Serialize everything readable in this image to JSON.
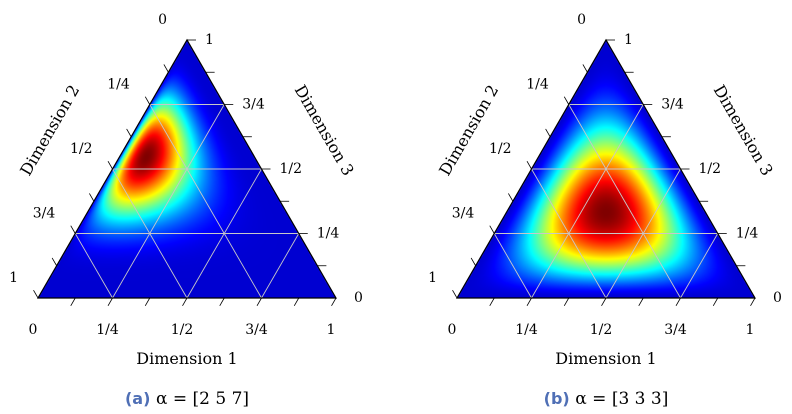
{
  "chart_data": [
    {
      "type": "heatmap",
      "subtype": "ternary-density",
      "distribution": "Dirichlet",
      "alpha": [
        2,
        5,
        7
      ],
      "caption_tag": "(a)",
      "caption_text": "α = [2 5 7]",
      "axes": [
        {
          "label": "Dimension 1",
          "ticks": [
            "0",
            "1/4",
            "1/2",
            "3/4",
            "1"
          ]
        },
        {
          "label": "Dimension 2",
          "ticks": [
            "0",
            "1/4",
            "1/2",
            "3/4",
            "1"
          ]
        },
        {
          "label": "Dimension 3",
          "ticks": [
            "0",
            "1/4",
            "1/2",
            "3/4",
            "1"
          ]
        }
      ],
      "colormap": "jet",
      "grid": true
    },
    {
      "type": "heatmap",
      "subtype": "ternary-density",
      "distribution": "Dirichlet",
      "alpha": [
        3,
        3,
        3
      ],
      "caption_tag": "(b)",
      "caption_text": "α = [3 3 3]",
      "axes": [
        {
          "label": "Dimension 1",
          "ticks": [
            "0",
            "1/4",
            "1/2",
            "3/4",
            "1"
          ]
        },
        {
          "label": "Dimension 2",
          "ticks": [
            "0",
            "1/4",
            "1/2",
            "3/4",
            "1"
          ]
        },
        {
          "label": "Dimension 3",
          "ticks": [
            "0",
            "1/4",
            "1/2",
            "3/4",
            "1"
          ]
        }
      ],
      "colormap": "jet",
      "grid": true
    }
  ],
  "colors": {
    "caption_tag": "#4f6fb5",
    "grid": "#c8c8c8",
    "axis": "#000000"
  }
}
